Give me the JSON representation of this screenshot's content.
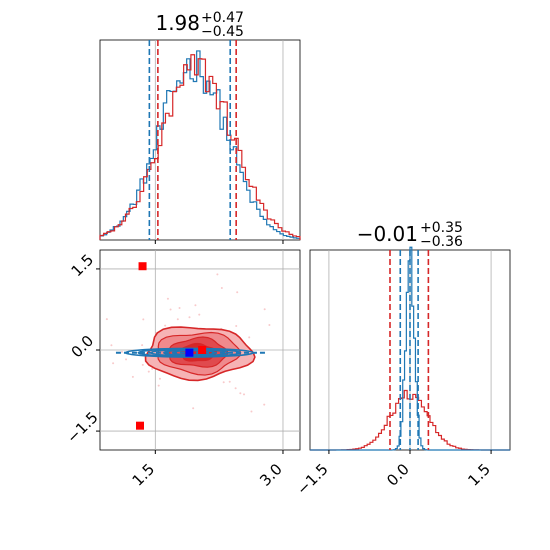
{
  "chart_data": {
    "type": "corner",
    "colors": {
      "red": "#d62728",
      "blue": "#1f77b4",
      "marker_red": "#ff0000",
      "marker_blue": "#0000ff"
    },
    "grid": true,
    "params": [
      {
        "title_main": "1.98",
        "title_sup": "+0.47",
        "title_sub": "−0.45",
        "range": [
          0.85,
          3.2
        ],
        "ticks": [
          1.5,
          3.0
        ],
        "tick_labels": [
          "1.5",
          "3.0"
        ]
      },
      {
        "title_main": "−0.01",
        "title_sup": "+0.35",
        "title_sub": "−0.36",
        "range": [
          -1.85,
          1.85
        ],
        "ticks": [
          -1.5,
          0.0,
          1.5
        ],
        "tick_labels": [
          "−1.5",
          "0.0",
          "1.5"
        ]
      }
    ],
    "hist1": {
      "red": {
        "center": 2.0,
        "sigma": 0.42,
        "quantiles": [
          1.53,
          1.98,
          2.45
        ]
      },
      "blue": {
        "center": 1.95,
        "sigma": 0.4,
        "quantiles": [
          1.43,
          1.95,
          2.38
        ]
      }
    },
    "hist2": {
      "red": {
        "center": -0.01,
        "sigma": 0.35,
        "quantiles": [
          -0.37,
          -0.01,
          0.34
        ]
      },
      "blue": {
        "center": 0.0,
        "sigma": 0.08,
        "quantiles": [
          -0.18,
          0.0,
          0.15
        ]
      }
    },
    "scatter_2d": {
      "red_ellipse": {
        "cx": 2.0,
        "cy": -0.05,
        "rx": 0.62,
        "ry": 0.48
      },
      "blue_ellipse": {
        "cx": 1.9,
        "cy": -0.05,
        "rx": 0.75,
        "ry": 0.05
      },
      "red_points": [
        [
          1.35,
          1.55
        ],
        [
          1.32,
          -1.4
        ],
        [
          2.05,
          0.0
        ]
      ],
      "blue_points": [
        [
          1.9,
          -0.05
        ]
      ]
    }
  }
}
